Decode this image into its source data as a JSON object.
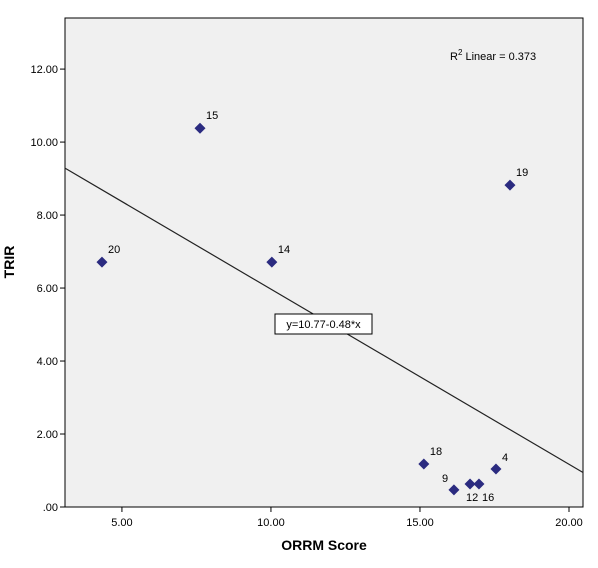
{
  "chart_data": {
    "type": "scatter",
    "x_label": "ORRM Score",
    "y_label": "TRIR",
    "x": [
      7.62,
      4.33,
      10.03,
      18.02,
      15.13,
      16.14,
      16.68,
      16.98,
      17.55
    ],
    "series": [
      {
        "color": "#2b2b80",
        "values": [
          10.38,
          6.71,
          6.71,
          8.82,
          1.18,
          0.47,
          0.63,
          0.63,
          1.04
        ],
        "labels": [
          "15",
          "20",
          "14",
          "19",
          "18",
          "9",
          "12",
          "16",
          "4"
        ]
      }
    ],
    "xlim": [
      3.09,
      20.47
    ],
    "ylim": [
      0,
      13.4
    ],
    "xticks": [
      {
        "value": 5,
        "label": "5.00"
      },
      {
        "value": 10,
        "label": "10.00"
      },
      {
        "value": 15,
        "label": "15.00"
      },
      {
        "value": 20,
        "label": "20.00"
      }
    ],
    "yticks": [
      {
        "value": 0,
        "label": ".00"
      },
      {
        "value": 2,
        "label": "2.00"
      },
      {
        "value": 4,
        "label": "4.00"
      },
      {
        "value": 6,
        "label": "6.00"
      },
      {
        "value": 8,
        "label": "8.00"
      },
      {
        "value": 10,
        "label": "10.00"
      },
      {
        "value": 12,
        "label": "12.00"
      }
    ],
    "fit_line": {
      "label": "y=10.77-0.48*x",
      "intercept": 10.77,
      "slope": -0.48
    },
    "r_squared": {
      "symbol": "R",
      "superscript": "2",
      "text": " Linear = 0.373"
    }
  }
}
